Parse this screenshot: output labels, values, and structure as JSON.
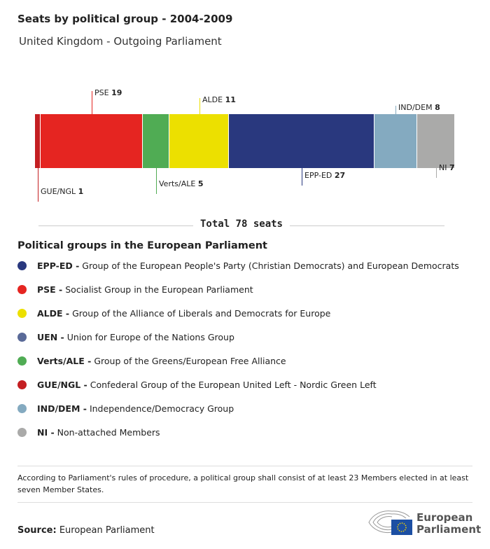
{
  "title": "Seats by political group - 2004-2009",
  "subtitle": "United Kingdom - Outgoing Parliament",
  "chart_data": {
    "type": "bar",
    "orientation": "horizontal-stacked",
    "categories": [
      "GUE/NGL",
      "PSE",
      "Verts/ALE",
      "ALDE",
      "EPP-ED",
      "IND/DEM",
      "NI"
    ],
    "values": [
      1,
      19,
      5,
      11,
      27,
      8,
      7
    ],
    "colors": [
      "#c41f22",
      "#e52521",
      "#50ac54",
      "#ece000",
      "#29387e",
      "#84aac0",
      "#aaaaa9"
    ],
    "total_label": "Total 78 seats"
  },
  "legend": {
    "title": "Political groups in the European Parliament",
    "items": [
      {
        "abbr": "EPP-ED -",
        "name": "Group of the European People's Party (Christian Democrats) and European Democrats",
        "color": "#29387e"
      },
      {
        "abbr": "PSE -",
        "name": "Socialist Group in the European Parliament",
        "color": "#e52521"
      },
      {
        "abbr": "ALDE -",
        "name": "Group of the Alliance of Liberals and Democrats for Europe",
        "color": "#ece000"
      },
      {
        "abbr": "UEN -",
        "name": "Union for Europe of the Nations Group",
        "color": "#5a6a98"
      },
      {
        "abbr": "Verts/ALE -",
        "name": "Group of the Greens/European Free Alliance",
        "color": "#50ac54"
      },
      {
        "abbr": "GUE/NGL -",
        "name": "Confederal Group of the European United Left - Nordic Green Left",
        "color": "#c41f22"
      },
      {
        "abbr": "IND/DEM -",
        "name": "Independence/Democracy Group",
        "color": "#84aac0"
      },
      {
        "abbr": "NI -",
        "name": "Non-attached Members",
        "color": "#aaaaa9"
      }
    ]
  },
  "note": "According to Parliament's rules of procedure, a political group shall consist of at least 23 Members elected in at least seven Member States.",
  "source": {
    "label": "Source:",
    "value": "European Parliament"
  },
  "logo": {
    "text_line1": "European",
    "text_line2": "Parliament"
  }
}
